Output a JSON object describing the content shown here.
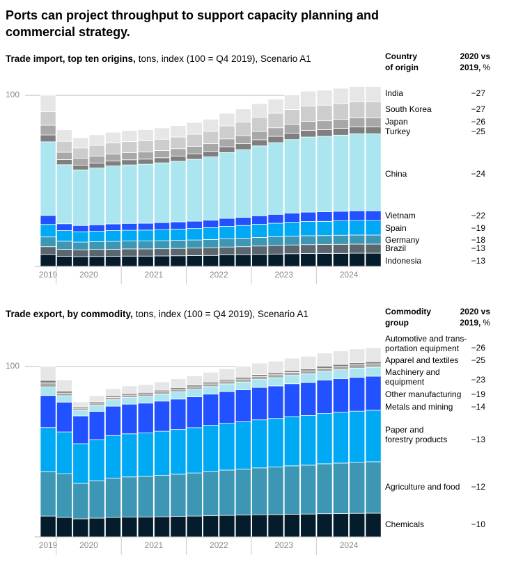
{
  "title": "Ports can project throughput to support capacity planning and commercial strategy.",
  "chart_data": [
    {
      "type": "bar",
      "stacked": true,
      "title": "Trade import, top ten origins,",
      "subtitle": "tons, index (100 = Q4 2019), Scenario A1",
      "legend_title": [
        "Country",
        "of origin"
      ],
      "change_title": [
        "2020 vs",
        "2019,"
      ],
      "change_unit": "%",
      "categories": [
        "2019",
        "2020",
        null,
        null,
        null,
        "2021",
        null,
        null,
        null,
        "2022",
        null,
        null,
        null,
        "2023",
        null,
        null,
        null,
        "2024",
        null,
        null,
        null
      ],
      "ylim": [
        0,
        115
      ],
      "yticks": [
        100
      ],
      "grid": true,
      "series": [
        {
          "name": "Indonesia",
          "color": "#051c2c",
          "change": "−13",
          "values": [
            7,
            5.9,
            5.7,
            5.8,
            5.9,
            6.0,
            6.0,
            6.1,
            6.2,
            6.3,
            6.4,
            6.7,
            6.8,
            7.0,
            7.2,
            7.4,
            7.5,
            7.6,
            7.6,
            7.7,
            7.7
          ]
        },
        {
          "name": "Brazil",
          "color": "#5a6670",
          "change": "−13",
          "values": [
            4.5,
            4.1,
            4,
            4.1,
            4.1,
            4.2,
            4.2,
            4.2,
            4.3,
            4.4,
            4.5,
            4.6,
            4.7,
            4.9,
            5.0,
            5.1,
            5.2,
            5.2,
            5.3,
            5.3,
            5.3
          ]
        },
        {
          "name": "Germany",
          "color": "#3c96b4",
          "change": "−18",
          "values": [
            5.7,
            4.7,
            4.5,
            4.5,
            4.6,
            4.6,
            4.6,
            4.7,
            4.7,
            4.7,
            4.8,
            4.9,
            5.0,
            5.0,
            5.1,
            5.2,
            5.2,
            5.2,
            5.3,
            5.3,
            5.3
          ]
        },
        {
          "name": "Spain",
          "color": "#00a9f4",
          "change": "−19",
          "values": [
            7.3,
            6.2,
            6,
            6.1,
            6.3,
            6.3,
            6.4,
            6.5,
            6.6,
            6.7,
            6.9,
            7.2,
            7.4,
            7.7,
            7.9,
            8.1,
            8.3,
            8.3,
            8.4,
            8.5,
            8.5
          ]
        },
        {
          "name": "Vietnam",
          "color": "#2251ff",
          "change": "−22",
          "values": [
            5.3,
            4.0,
            3.7,
            3.8,
            3.9,
            4.0,
            4.0,
            4.1,
            4.2,
            4.3,
            4.4,
            4.7,
            4.8,
            5.0,
            5.2,
            5.4,
            5.5,
            5.6,
            5.6,
            5.7,
            5.7
          ]
        },
        {
          "name": "China",
          "color": "#aae5f0",
          "change": "−24",
          "values": [
            43,
            34.5,
            32.5,
            33.2,
            33.9,
            34.2,
            34.5,
            34.9,
            35.4,
            36.2,
            37.0,
            38.4,
            39.5,
            40.8,
            41.9,
            42.9,
            43.9,
            44.1,
            44.5,
            45.0,
            45
          ]
        },
        {
          "name": "Turkey",
          "color": "#7f7f7f",
          "change": "−25",
          "values": [
            4,
            3.0,
            2.8,
            2.9,
            2.9,
            3.0,
            3.0,
            3.0,
            3.1,
            3.2,
            3.2,
            3.4,
            3.5,
            3.6,
            3.7,
            3.8,
            3.9,
            3.9,
            4.0,
            4.0,
            4
          ]
        },
        {
          "name": "Japan",
          "color": "#a8a8a8",
          "change": "−26",
          "values": [
            5.7,
            4.3,
            4,
            4.1,
            4.1,
            4.2,
            4.2,
            4.2,
            4.3,
            4.4,
            4.5,
            4.6,
            4.7,
            4.9,
            5.0,
            5.1,
            5.2,
            5.2,
            5.3,
            5.3,
            5.3
          ]
        },
        {
          "name": "South Korea",
          "color": "#cdcdcd",
          "change": "−27",
          "values": [
            8,
            6.4,
            6,
            6.2,
            6.4,
            6.5,
            6.5,
            6.6,
            6.8,
            7.0,
            7.2,
            7.6,
            7.9,
            8.2,
            8.5,
            8.7,
            9.0,
            9.1,
            9.2,
            9.3,
            9.3
          ]
        },
        {
          "name": "India",
          "color": "#e6e6e6",
          "change": "−27",
          "values": [
            9.5,
            6.7,
            6,
            6.2,
            6.3,
            6.4,
            6.5,
            6.6,
            6.7,
            6.9,
            7.1,
            7.4,
            7.7,
            8.0,
            8.2,
            8.5,
            8.7,
            8.8,
            8.9,
            9.0,
            9
          ]
        }
      ]
    },
    {
      "type": "bar",
      "stacked": true,
      "title": "Trade export, by commodity,",
      "subtitle": "tons, index (100 = Q4 2019), Scenario A1",
      "legend_title": [
        "Commodity",
        "group"
      ],
      "change_title": [
        "2020 vs",
        "2019,"
      ],
      "change_unit": "%",
      "categories": [
        "2019",
        "2020",
        null,
        null,
        null,
        "2021",
        null,
        null,
        null,
        "2022",
        null,
        null,
        null,
        "2023",
        null,
        null,
        null,
        "2024",
        null,
        null,
        null
      ],
      "ylim": [
        0,
        115
      ],
      "yticks": [
        100
      ],
      "grid": true,
      "series": [
        {
          "name": "Chemicals",
          "color": "#051c2c",
          "change": "−10",
          "values": [
            12.2,
            11.4,
            10.6,
            11.0,
            11.4,
            11.6,
            11.7,
            11.8,
            12.0,
            12.2,
            12.4,
            12.6,
            12.8,
            13.0,
            13.1,
            13.3,
            13.4,
            13.6,
            13.7,
            13.8,
            13.9
          ]
        },
        {
          "name": "Agriculture and food",
          "color": "#3c96b4",
          "change": "−12",
          "values": [
            26,
            25.7,
            20.8,
            21.9,
            23.1,
            23.6,
            23.8,
            24.3,
            24.8,
            25.3,
            26.0,
            26.6,
            27.0,
            27.5,
            27.9,
            28.4,
            28.7,
            29.3,
            29.6,
            30.0,
            30.2
          ]
        },
        {
          "name": [
            "Paper and",
            "forestry products"
          ],
          "color": "#00a9f4",
          "change": "−13",
          "values": [
            26,
            24.5,
            23.3,
            24.1,
            25.0,
            25.3,
            25.5,
            25.9,
            26.2,
            26.6,
            27.1,
            27.5,
            27.8,
            28.2,
            28.5,
            28.9,
            29.1,
            29.5,
            29.8,
            30.0,
            30.2
          ]
        },
        {
          "name": "Metals and mining",
          "color": "#2251ff",
          "change": "−14",
          "values": [
            18.8,
            17.5,
            16.3,
            16.7,
            17.2,
            17.4,
            17.5,
            17.7,
            17.9,
            18.1,
            18.3,
            18.6,
            18.7,
            19.0,
            19.1,
            19.3,
            19.4,
            19.6,
            19.8,
            19.9,
            20
          ]
        },
        {
          "name": "Other manufacturing",
          "color": "#aae5f0",
          "change": "−19",
          "values": [
            4.9,
            3.7,
            3.3,
            3.5,
            3.8,
            3.9,
            3.9,
            4.0,
            4.2,
            4.3,
            4.4,
            4.5,
            4.6,
            4.7,
            4.8,
            4.9,
            5.0,
            5.1,
            5.2,
            5.3,
            5.3
          ]
        },
        {
          "name": [
            "Machinery and",
            "equipment"
          ],
          "color": "#a8a8a8",
          "change": "−23",
          "values": [
            2.4,
            1.6,
            1.2,
            1.3,
            1.4,
            1.4,
            1.5,
            1.5,
            1.5,
            1.6,
            1.6,
            1.7,
            1.7,
            1.8,
            1.8,
            1.8,
            1.9,
            1.9,
            1.9,
            2.0,
            2
          ]
        },
        {
          "name": "Apparel and textiles",
          "color": "#7f7f7f",
          "change": "−25",
          "values": [
            1.6,
            1.2,
            0.8,
            0.8,
            0.9,
            0.9,
            0.9,
            0.9,
            1.0,
            1.0,
            1.0,
            1.0,
            1.1,
            1.1,
            1.1,
            1.1,
            1.1,
            1.2,
            1.2,
            1.2,
            1.2
          ]
        },
        {
          "name": [
            "Automotive and trans-",
            "portation equipment"
          ],
          "color": "#e6e6e6",
          "change": "−26",
          "values": [
            8.1,
            6.5,
            2.9,
            3.5,
            4.2,
            4.5,
            4.6,
            4.9,
            5.2,
            5.4,
            5.8,
            6.2,
            6.4,
            6.7,
            6.9,
            7.2,
            7.4,
            7.7,
            7.9,
            8.1,
            8.2
          ]
        }
      ]
    }
  ]
}
